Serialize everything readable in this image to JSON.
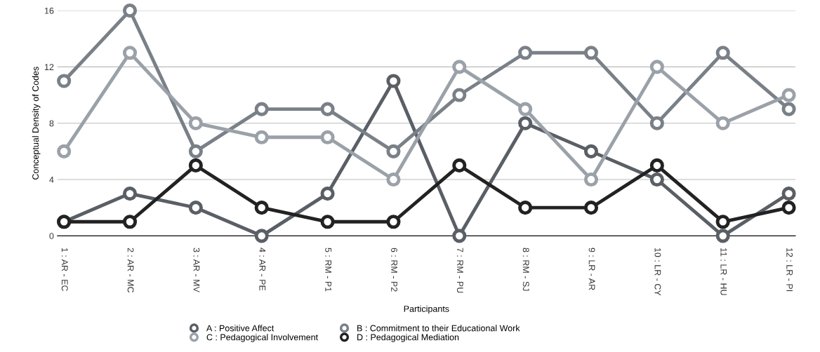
{
  "chart_data": {
    "type": "line",
    "xlabel": "Participants",
    "ylabel": "Conceptual Density of Codes",
    "categories": [
      "1 : AR - EC",
      "2 : AR - MC",
      "3 : AR - MV",
      "4 : AR - PE",
      "5 : RM - P1",
      "6 : RM - P2",
      "7 : RM - PU",
      "8 : RM - SJ",
      "9 : LR - AR",
      "10 : LR - CY",
      "11 : LR - HU",
      "12 : LR - PI"
    ],
    "series": [
      {
        "name": "A : Positive Affect",
        "color": "#5a5f66",
        "values": [
          1,
          3,
          2,
          0,
          3,
          11,
          0,
          8,
          6,
          4,
          0,
          3
        ]
      },
      {
        "name": "B : Commitment to their Educational Work",
        "color": "#7a8088",
        "values": [
          11,
          16,
          6,
          9,
          9,
          6,
          10,
          13,
          13,
          8,
          13,
          9
        ]
      },
      {
        "name": "C : Pedagogical Involvement",
        "color": "#9ba1a9",
        "values": [
          6,
          13,
          8,
          7,
          7,
          4,
          12,
          9,
          4,
          12,
          8,
          10
        ]
      },
      {
        "name": "D : Pedagogical Mediation",
        "color": "#222222",
        "values": [
          1,
          1,
          5,
          2,
          1,
          1,
          5,
          2,
          2,
          5,
          1,
          2
        ]
      }
    ],
    "ylim": [
      0,
      16
    ],
    "yticks": [
      0,
      4,
      8,
      12,
      16
    ],
    "grid": "y",
    "legend": "bottom",
    "marker": "circle",
    "line_style": "solid"
  }
}
